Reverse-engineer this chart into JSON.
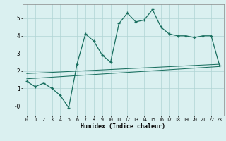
{
  "xlabel": "Humidex (Indice chaleur)",
  "background_color": "#daf0f0",
  "grid_color": "#b0d4d4",
  "line_color": "#1a7060",
  "x_ticks": [
    0,
    1,
    2,
    3,
    4,
    5,
    6,
    7,
    8,
    9,
    10,
    11,
    12,
    13,
    14,
    15,
    16,
    17,
    18,
    19,
    20,
    21,
    22,
    23
  ],
  "ylim": [
    -0.55,
    5.8
  ],
  "xlim": [
    -0.5,
    23.5
  ],
  "main_x": [
    0,
    1,
    2,
    3,
    4,
    5,
    6,
    7,
    8,
    9,
    10,
    11,
    12,
    13,
    14,
    15,
    16,
    17,
    18,
    19,
    20,
    21,
    22,
    23
  ],
  "main_y": [
    1.4,
    1.1,
    1.3,
    1.0,
    0.6,
    -0.1,
    2.4,
    4.1,
    3.7,
    2.9,
    2.5,
    4.7,
    5.3,
    4.8,
    4.9,
    5.5,
    4.5,
    4.1,
    4.0,
    4.0,
    3.9,
    4.0,
    4.0,
    2.3
  ],
  "line2_x": [
    0,
    23
  ],
  "line2_y": [
    1.55,
    2.25
  ],
  "line3_x": [
    0,
    23
  ],
  "line3_y": [
    1.85,
    2.38
  ],
  "yticks": [
    0,
    1,
    2,
    3,
    4,
    5
  ],
  "ytick_labels": [
    "-0",
    "1",
    "2",
    "3",
    "4",
    "5"
  ]
}
